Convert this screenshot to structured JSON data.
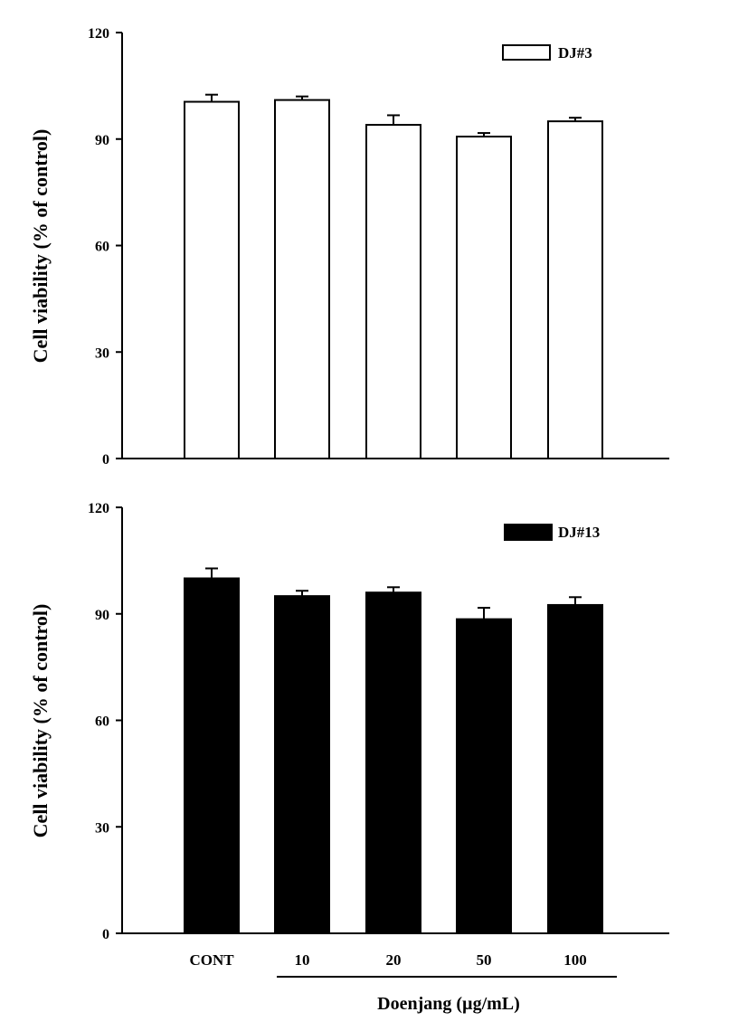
{
  "chart_data": [
    {
      "type": "bar",
      "ylabel": "Cell viability (% of control)",
      "ylim": [
        0,
        120
      ],
      "yticks": [
        0,
        30,
        60,
        90,
        120
      ],
      "categories": [
        "CONT",
        "10",
        "20",
        "50",
        "100"
      ],
      "series": [
        {
          "name": "DJ#3",
          "values": [
            100.5,
            101,
            94,
            90.7,
            95
          ],
          "errors": [
            2,
            1,
            2.7,
            1,
            1
          ],
          "fill": "#ffffff"
        }
      ],
      "legend_position": "top-right",
      "grid": false
    },
    {
      "type": "bar",
      "ylabel": "Cell viability (% of control)",
      "ylim": [
        0,
        120
      ],
      "yticks": [
        0,
        30,
        60,
        90,
        120
      ],
      "categories": [
        "CONT",
        "10",
        "20",
        "50",
        "100"
      ],
      "series": [
        {
          "name": "DJ#13",
          "values": [
            100,
            95,
            96,
            88.5,
            92.5
          ],
          "errors": [
            2.8,
            1.5,
            1.5,
            3.2,
            2.2
          ],
          "fill": "#000000"
        }
      ],
      "legend_position": "top-right",
      "grid": false,
      "group_label": "Doenjang  (µg/mL)"
    }
  ]
}
